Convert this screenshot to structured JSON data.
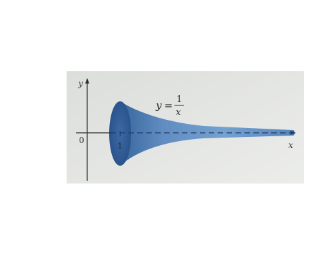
{
  "figure": {
    "y_axis_label": "y",
    "x_axis_label": "x",
    "origin_label": "0",
    "x_tick_label": "1",
    "equation": {
      "lhs": "y",
      "equals": "=",
      "numerator": "1",
      "denominator": "x"
    }
  },
  "colors": {
    "page_background": "#e6e7e4",
    "horn_fill_dark": "#2f5f98",
    "horn_fill_light": "#6f9dcf",
    "axis": "#2a2d33"
  }
}
